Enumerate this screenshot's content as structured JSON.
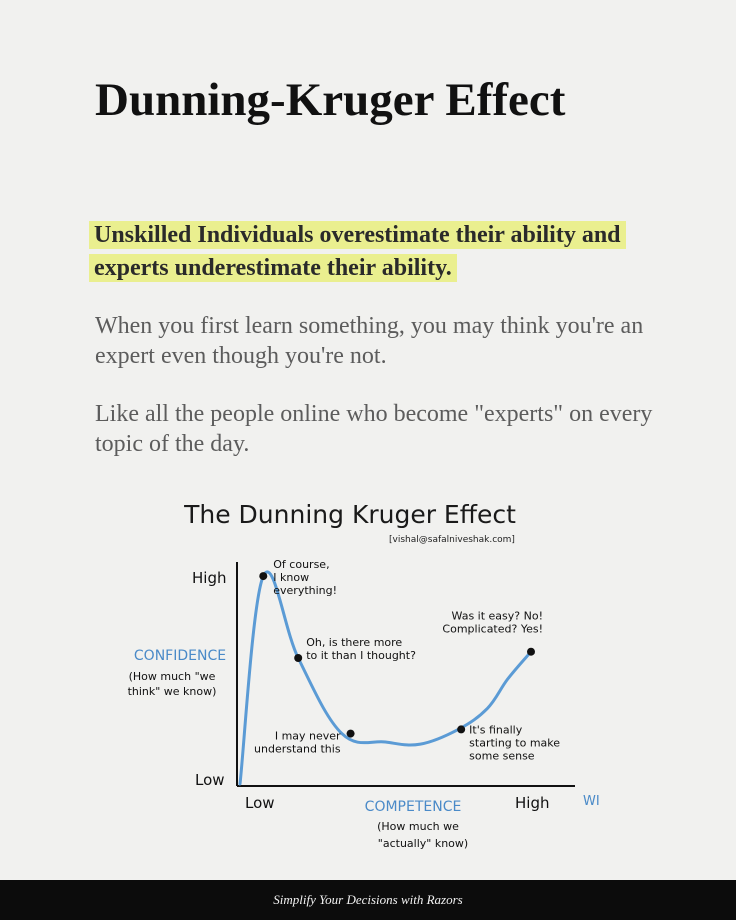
{
  "title": "Dunning-Kruger Effect",
  "highlight": "Unskilled Individuals overestimate their ability and experts underestimate their ability.",
  "paragraphs": [
    "When you first learn something, you may think you're an expert even though you're not.",
    "Like all the people online who become \"experts\" on every topic of the day."
  ],
  "footer": "Simplify Your Decisions with Razors",
  "chart_data": {
    "type": "line",
    "title": "The Dunning Kruger Effect",
    "credit": "[vishal@safalniveshak.com]",
    "y_axis": {
      "label": "CONFIDENCE",
      "sublabel_line1": "(How much \"we",
      "sublabel_line2": "think\" we know)",
      "ticks": [
        "High",
        "Low"
      ]
    },
    "x_axis": {
      "label": "COMPETENCE",
      "sublabel_line1": "(How much we",
      "sublabel_line2": "\"actually\" know)",
      "ticks": [
        "Low",
        "High"
      ],
      "edge_text": "WI"
    },
    "series": [
      {
        "x": [
          0,
          0.08,
          0.2,
          0.35,
          0.5,
          0.62,
          0.75,
          0.85,
          0.92,
          1.0
        ],
        "y": [
          0,
          0.99,
          0.6,
          0.24,
          0.2,
          0.19,
          0.26,
          0.36,
          0.5,
          0.63
        ]
      }
    ],
    "annotations": [
      {
        "x": 0.08,
        "y": 0.99,
        "line1": "Of course,",
        "line2": "I know",
        "line3": "everything!"
      },
      {
        "x": 0.2,
        "y": 0.6,
        "line1": "Oh, is there more",
        "line2": "to it than I thought?",
        "line3": ""
      },
      {
        "x": 0.38,
        "y": 0.24,
        "line1": "I may never",
        "line2": "understand this",
        "line3": ""
      },
      {
        "x": 0.76,
        "y": 0.26,
        "line1": "It's finally",
        "line2": "starting to make",
        "line3": "some sense"
      },
      {
        "x": 1.0,
        "y": 0.63,
        "line1": "Was it easy? No!",
        "line2": "Complicated? Yes!",
        "line3": ""
      }
    ],
    "line_color": "#5b9bd5",
    "label_color": "#4a8ac8"
  }
}
